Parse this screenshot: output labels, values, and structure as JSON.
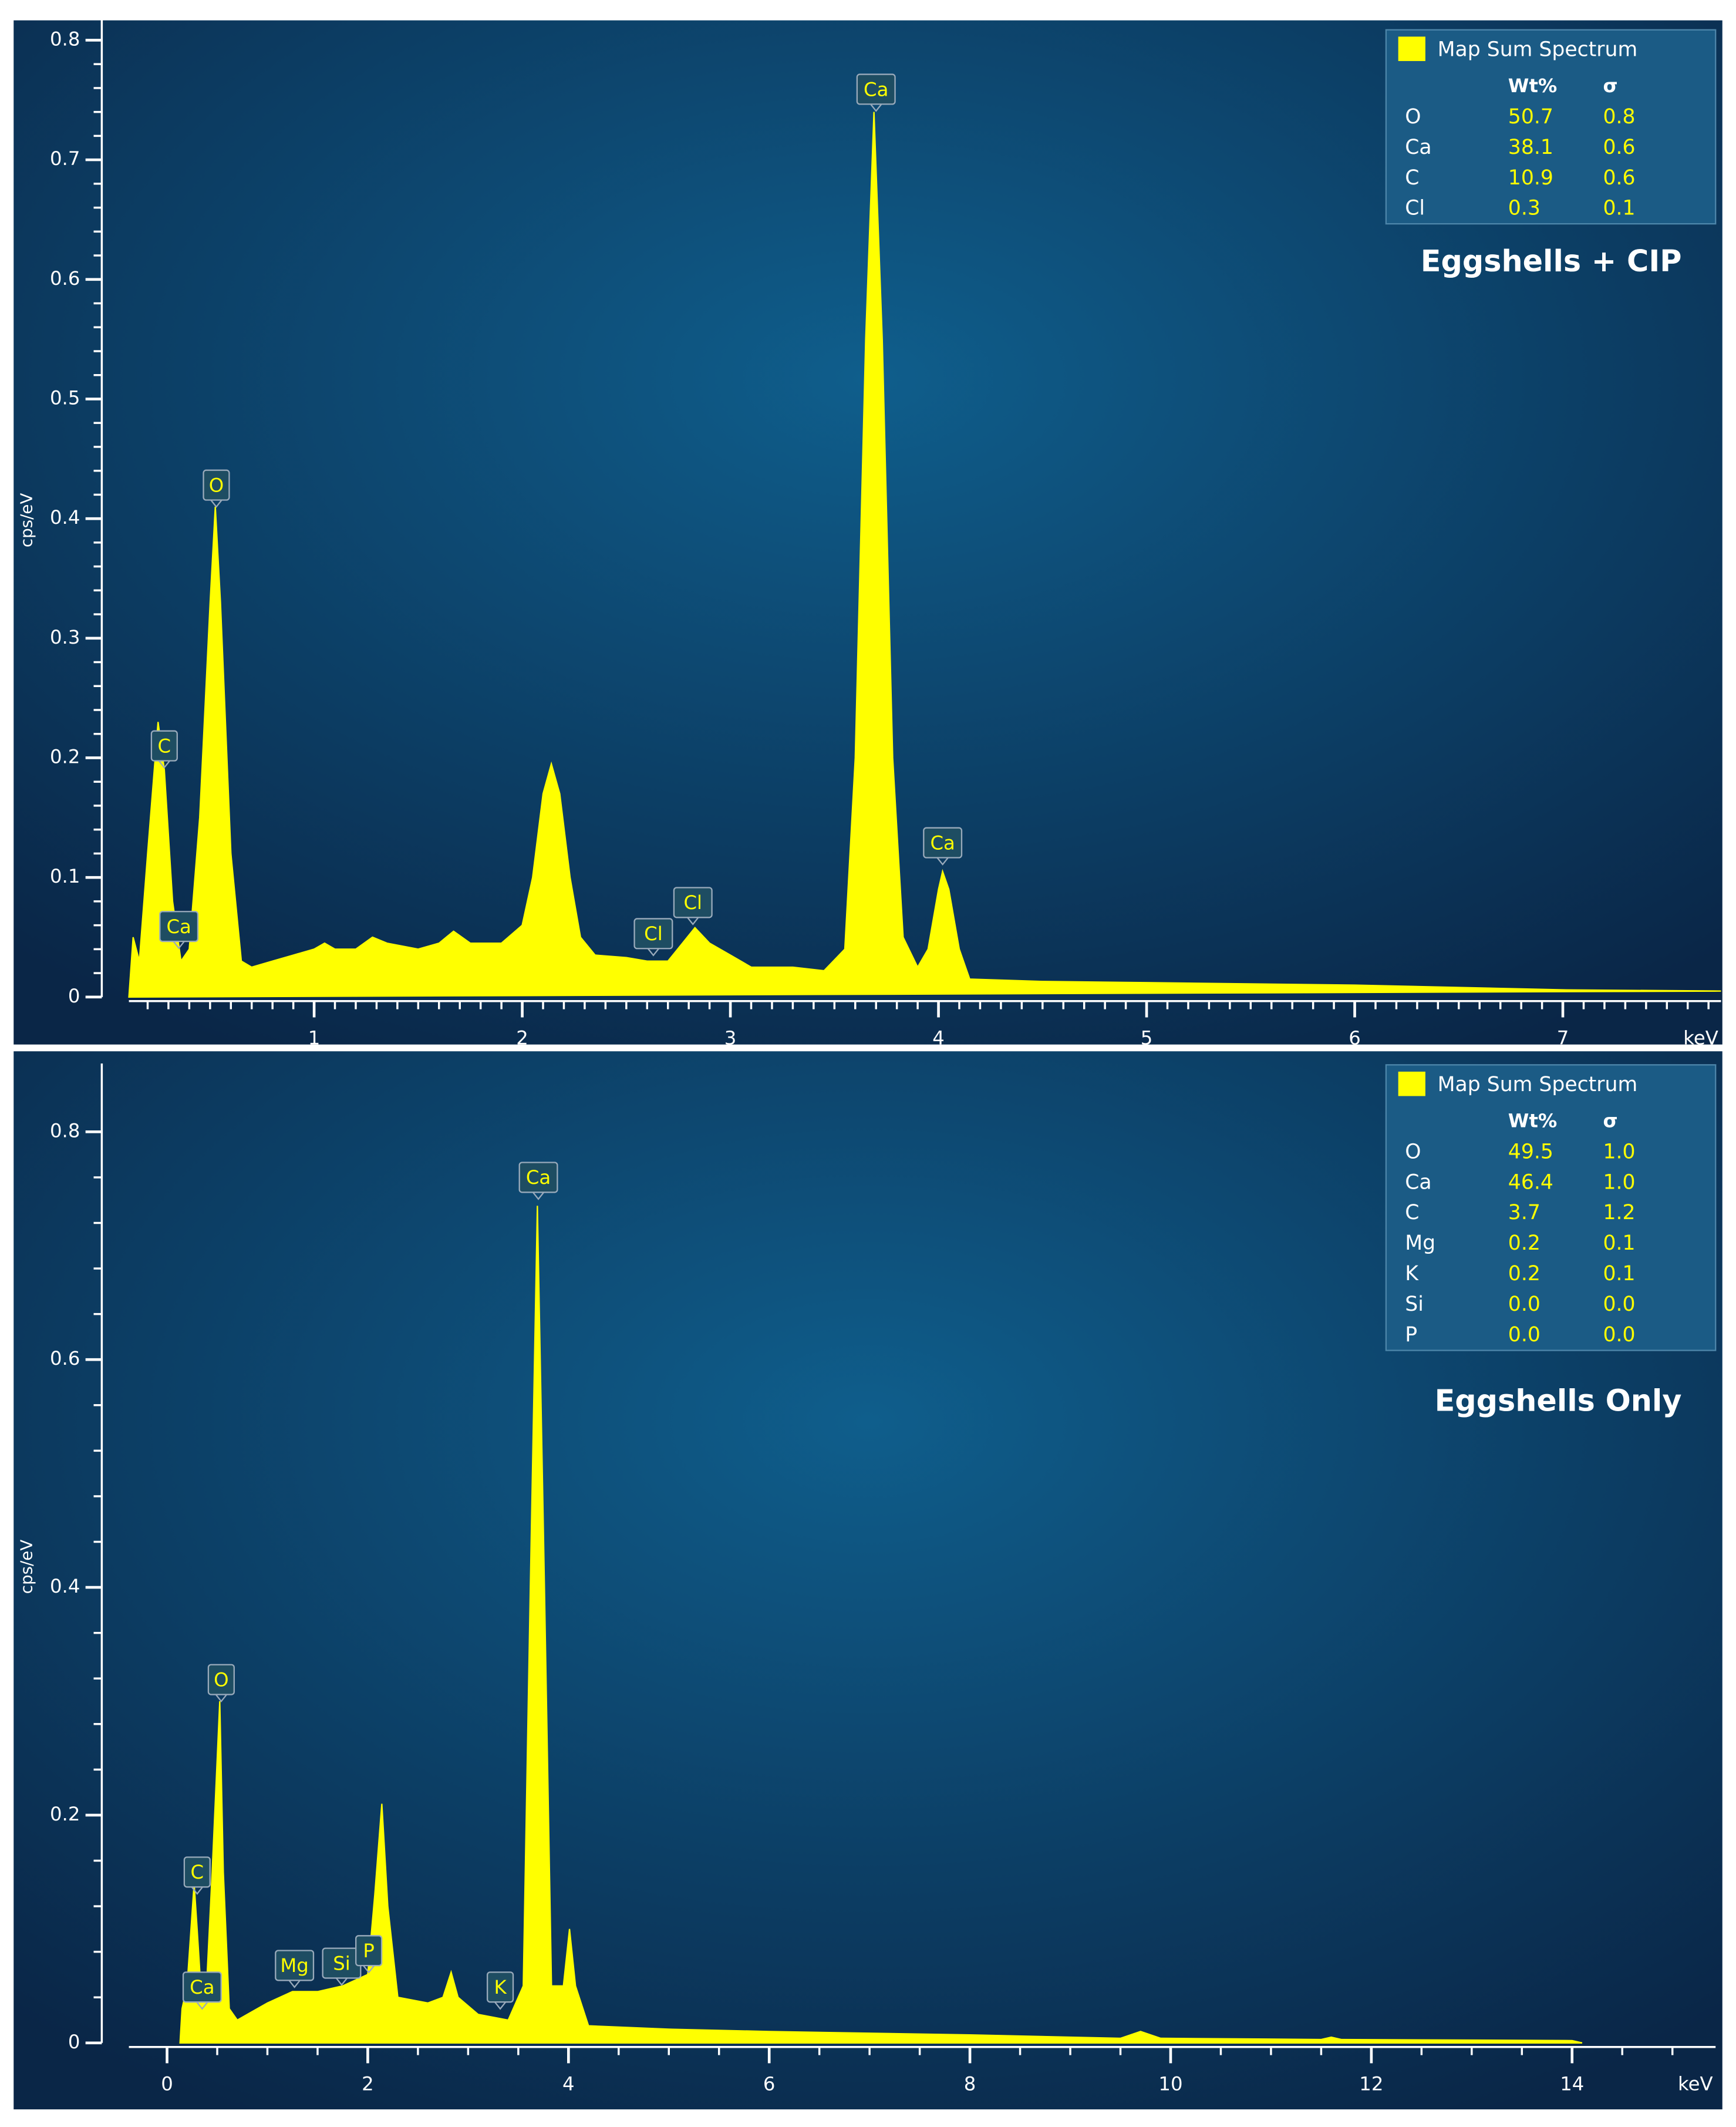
{
  "chart_data": [
    {
      "type": "area",
      "color": "#ffff00",
      "y_label": "cps/eV",
      "x_label": "keV",
      "label": "Eggshells + CIP",
      "xlim": [
        0.11,
        7.76
      ],
      "ylim": [
        0,
        0.82
      ],
      "xticks": [
        1,
        2,
        3,
        4,
        5,
        6,
        7
      ],
      "yticks": [
        0,
        0.1,
        0.2,
        0.3,
        0.4,
        0.5,
        0.6,
        0.7,
        0.8
      ],
      "x": [
        0.11,
        0.13,
        0.16,
        0.2,
        0.25,
        0.28,
        0.32,
        0.36,
        0.4,
        0.45,
        0.5,
        0.525,
        0.55,
        0.6,
        0.65,
        0.7,
        0.8,
        0.9,
        1.0,
        1.05,
        1.1,
        1.2,
        1.28,
        1.35,
        1.5,
        1.6,
        1.67,
        1.75,
        1.9,
        2.0,
        2.05,
        2.1,
        2.14,
        2.18,
        2.23,
        2.28,
        2.35,
        2.5,
        2.6,
        2.7,
        2.77,
        2.83,
        2.9,
        3.0,
        3.1,
        3.3,
        3.45,
        3.55,
        3.6,
        3.65,
        3.69,
        3.73,
        3.78,
        3.83,
        3.9,
        3.95,
        4.0,
        4.02,
        4.05,
        4.1,
        4.15,
        4.5,
        5,
        6,
        7,
        7.76
      ],
      "values": [
        0.0,
        0.05,
        0.03,
        0.12,
        0.23,
        0.19,
        0.08,
        0.03,
        0.04,
        0.15,
        0.33,
        0.41,
        0.33,
        0.12,
        0.03,
        0.025,
        0.03,
        0.035,
        0.04,
        0.045,
        0.04,
        0.04,
        0.05,
        0.045,
        0.04,
        0.045,
        0.055,
        0.045,
        0.045,
        0.06,
        0.1,
        0.17,
        0.195,
        0.17,
        0.1,
        0.05,
        0.035,
        0.033,
        0.03,
        0.03,
        0.045,
        0.058,
        0.045,
        0.035,
        0.025,
        0.025,
        0.022,
        0.04,
        0.2,
        0.55,
        0.74,
        0.55,
        0.2,
        0.05,
        0.025,
        0.04,
        0.09,
        0.105,
        0.09,
        0.04,
        0.015,
        0.013,
        0.012,
        0.01,
        0.006,
        0.005
      ],
      "annotations": [
        {
          "text": "C",
          "x": 0.28,
          "y": 0.21
        },
        {
          "text": "Ca",
          "x": 0.35,
          "y": 0.059
        },
        {
          "text": "O",
          "x": 0.53,
          "y": 0.428
        },
        {
          "text": "Cl",
          "x": 2.63,
          "y": 0.053
        },
        {
          "text": "Cl",
          "x": 2.82,
          "y": 0.079
        },
        {
          "text": "Ca",
          "x": 3.7,
          "y": 0.759
        },
        {
          "text": "Ca",
          "x": 4.02,
          "y": 0.129
        }
      ],
      "legend": {
        "title": "Map Sum Spectrum",
        "columns": [
          "Wt%",
          "σ"
        ],
        "rows": [
          [
            "O",
            "50.7",
            "0.8"
          ],
          [
            "Ca",
            "38.1",
            "0.6"
          ],
          [
            "C",
            "10.9",
            "0.6"
          ],
          [
            "Cl",
            "0.3",
            "0.1"
          ]
        ]
      }
    },
    {
      "type": "area",
      "color": "#ffff00",
      "y_label": "cps/eV",
      "x_label": "keV",
      "label": "Eggshells Only",
      "xlim": [
        -0.38,
        15.43
      ],
      "ylim": [
        0,
        0.86
      ],
      "xticks": [
        0,
        2,
        4,
        6,
        8,
        10,
        12,
        14
      ],
      "yticks": [
        0,
        0.2,
        0.4,
        0.6,
        0.8
      ],
      "x": [
        0.13,
        0.15,
        0.2,
        0.27,
        0.3,
        0.35,
        0.4,
        0.45,
        0.525,
        0.56,
        0.62,
        0.7,
        0.8,
        1.0,
        1.25,
        1.5,
        1.75,
        2.0,
        2.07,
        2.14,
        2.2,
        2.3,
        2.6,
        2.75,
        2.83,
        2.9,
        3.1,
        3.4,
        3.55,
        3.62,
        3.69,
        3.76,
        3.83,
        3.95,
        4.01,
        4.07,
        4.2,
        5,
        6,
        8,
        9.5,
        9.7,
        9.9,
        11.5,
        11.6,
        11.7,
        14,
        14.1
      ],
      "values": [
        0.0,
        0.03,
        0.05,
        0.14,
        0.1,
        0.03,
        0.06,
        0.15,
        0.3,
        0.15,
        0.03,
        0.02,
        0.025,
        0.035,
        0.045,
        0.045,
        0.05,
        0.06,
        0.13,
        0.21,
        0.12,
        0.04,
        0.035,
        0.04,
        0.062,
        0.04,
        0.025,
        0.02,
        0.05,
        0.4,
        0.735,
        0.4,
        0.05,
        0.05,
        0.1,
        0.05,
        0.015,
        0.012,
        0.01,
        0.007,
        0.004,
        0.01,
        0.004,
        0.003,
        0.005,
        0.003,
        0.002,
        0.0
      ],
      "annotations": [
        {
          "text": "Ca",
          "x": 3.7,
          "y": 0.76
        },
        {
          "text": "O",
          "x": 0.54,
          "y": 0.319
        },
        {
          "text": "C",
          "x": 0.3,
          "y": 0.15
        },
        {
          "text": "Ca",
          "x": 0.35,
          "y": 0.049
        },
        {
          "text": "Mg",
          "x": 1.27,
          "y": 0.068
        },
        {
          "text": "Si",
          "x": 1.74,
          "y": 0.07
        },
        {
          "text": "P",
          "x": 2.01,
          "y": 0.081
        },
        {
          "text": "K",
          "x": 3.32,
          "y": 0.049
        }
      ],
      "legend": {
        "title": "Map Sum Spectrum",
        "columns": [
          "Wt%",
          "σ"
        ],
        "rows": [
          [
            "O",
            "49.5",
            "1.0"
          ],
          [
            "Ca",
            "46.4",
            "1.0"
          ],
          [
            "C",
            "3.7",
            "1.2"
          ],
          [
            "Mg",
            "0.2",
            "0.1"
          ],
          [
            "K",
            "0.2",
            "0.1"
          ],
          [
            "Si",
            "0.0",
            "0.0"
          ],
          [
            "P",
            "0.0",
            "0.0"
          ]
        ]
      }
    }
  ]
}
